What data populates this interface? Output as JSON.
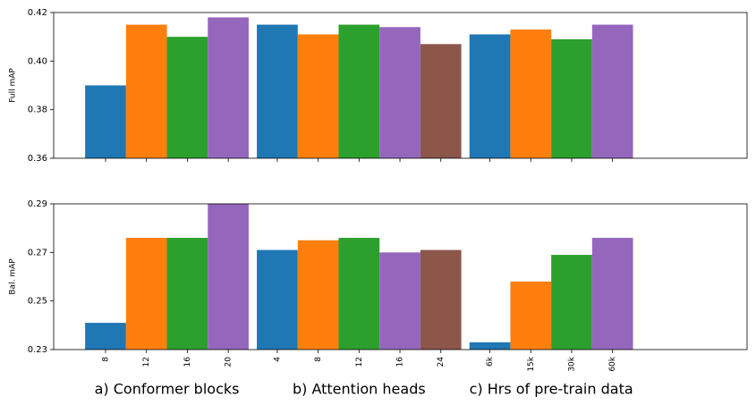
{
  "chart_data": [
    {
      "type": "bar",
      "ylabel": "Full mAP",
      "ylim": [
        0.36,
        0.42
      ],
      "yticks": [
        0.36,
        0.38,
        {
          "value": 0.4,
          "label": "0.40"
        },
        0.42
      ],
      "groups": [
        {
          "values": [
            0.39,
            0.415,
            0.41,
            0.418
          ],
          "colors": [
            "#1f77b4",
            "#ff7f0e",
            "#2ca02c",
            "#9467bd"
          ]
        },
        {
          "values": [
            0.415,
            0.411,
            0.415,
            0.414,
            0.407
          ],
          "colors": [
            "#1f77b4",
            "#ff7f0e",
            "#2ca02c",
            "#9467bd",
            "#8c564b"
          ]
        },
        {
          "values": [
            0.411,
            0.413,
            0.409,
            0.415
          ],
          "colors": [
            "#1f77b4",
            "#ff7f0e",
            "#2ca02c",
            "#9467bd"
          ]
        }
      ]
    },
    {
      "type": "bar",
      "ylabel": "Bal. mAP",
      "ylim": [
        0.23,
        0.29
      ],
      "yticks": [
        0.23,
        0.25,
        0.27,
        0.29
      ],
      "groups": [
        {
          "label": "a) Conformer blocks",
          "categories": [
            "8",
            "12",
            "16",
            "20"
          ],
          "values": [
            0.241,
            0.276,
            0.276,
            0.29
          ],
          "colors": [
            "#1f77b4",
            "#ff7f0e",
            "#2ca02c",
            "#9467bd"
          ]
        },
        {
          "label": "b) Attention heads",
          "categories": [
            "4",
            "8",
            "12",
            "16",
            "24"
          ],
          "values": [
            0.271,
            0.275,
            0.276,
            0.27,
            0.271
          ],
          "colors": [
            "#1f77b4",
            "#ff7f0e",
            "#2ca02c",
            "#9467bd",
            "#8c564b"
          ]
        },
        {
          "label": "c) Hrs of pre-train data",
          "categories": [
            "6k",
            "15k",
            "30k",
            "60k"
          ],
          "values": [
            0.233,
            0.258,
            0.269,
            0.276
          ],
          "colors": [
            "#1f77b4",
            "#ff7f0e",
            "#2ca02c",
            "#9467bd"
          ]
        }
      ]
    }
  ]
}
